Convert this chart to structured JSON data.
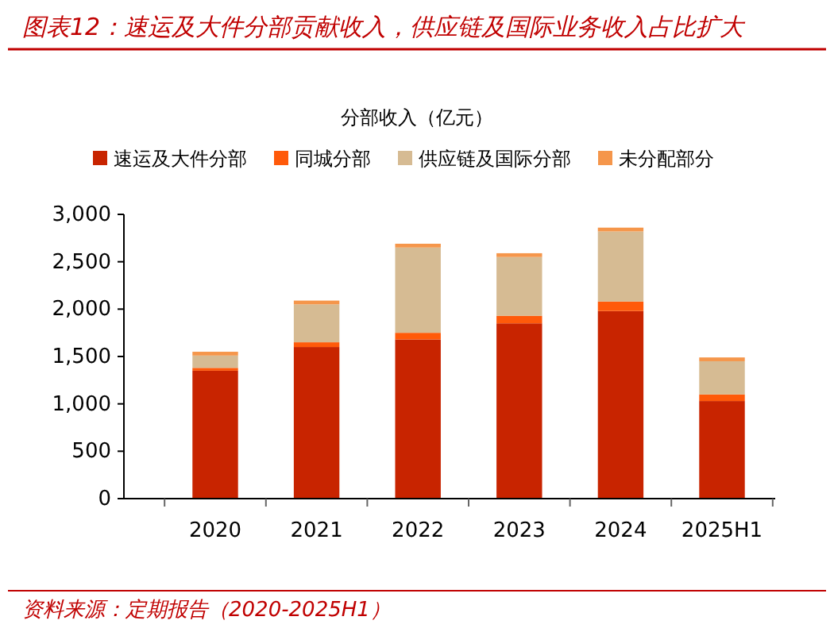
{
  "chart_data": {
    "type": "bar",
    "stacked": true,
    "title": "图表12：速运及大件分部贡献收入，供应链及国际业务收入占比扩大",
    "subtitle": "分部收入（亿元）",
    "categories": [
      "2020",
      "2021",
      "2022",
      "2023",
      "2024",
      "2025H1"
    ],
    "series": [
      {
        "name": "速运及大件分部",
        "color": "#c82400",
        "values": [
          1350,
          1600,
          1680,
          1850,
          1980,
          1030
        ]
      },
      {
        "name": "同城分部",
        "color": "#ff5a0a",
        "values": [
          30,
          50,
          70,
          80,
          100,
          70
        ]
      },
      {
        "name": "供应链及国际分部",
        "color": "#d6bb93",
        "values": [
          130,
          400,
          900,
          620,
          740,
          350
        ]
      },
      {
        "name": "未分配部分",
        "color": "#f5964b",
        "values": [
          40,
          40,
          40,
          40,
          40,
          40
        ]
      }
    ],
    "ylim": [
      0,
      3000
    ],
    "yticks": [
      0,
      {
        "value": 500,
        "label": "500"
      },
      {
        "value": 1000,
        "label": "1,000"
      },
      {
        "value": 1500,
        "label": "1,500"
      },
      {
        "value": 2000,
        "label": "2,000"
      },
      {
        "value": 2500,
        "label": "2,500"
      },
      {
        "value": 3000,
        "label": "3,000"
      }
    ],
    "grid": false,
    "legend": "top",
    "annotations": [
      "资料来源：定期报告（2020-2025H1）"
    ]
  }
}
